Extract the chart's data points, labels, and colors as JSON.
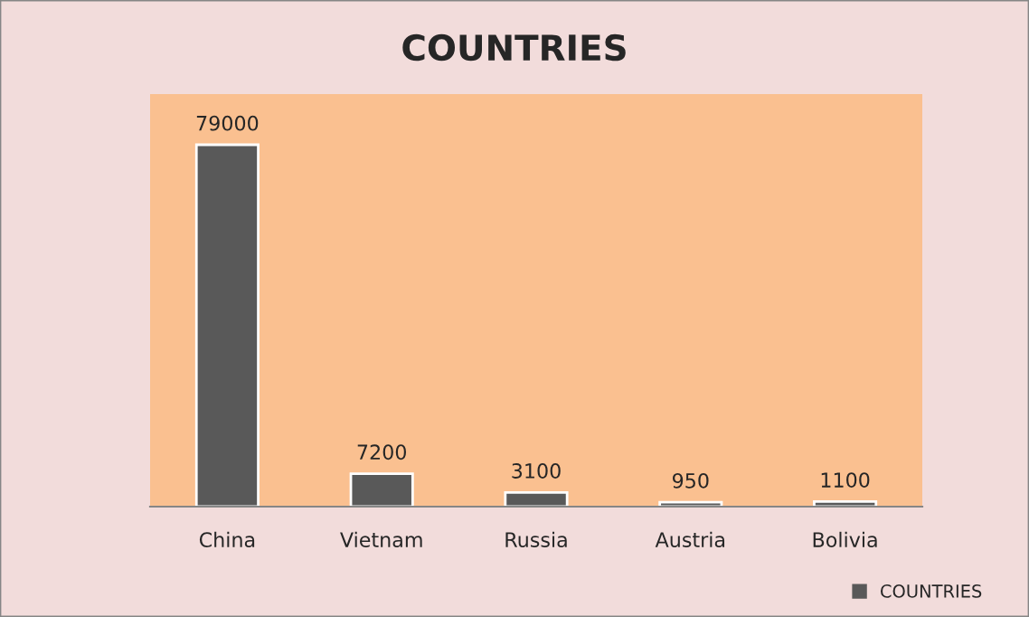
{
  "chart_data": {
    "type": "bar",
    "title": "COUNTRIES",
    "categories": [
      "China",
      "Vietnam",
      "Russia",
      "Austria",
      "Bolivia"
    ],
    "series": [
      {
        "name": "COUNTRIES",
        "color": "#595959",
        "values": [
          79000,
          7200,
          3100,
          950,
          1100
        ]
      }
    ],
    "data_labels": true,
    "grid": false,
    "legend": "bottom right"
  }
}
